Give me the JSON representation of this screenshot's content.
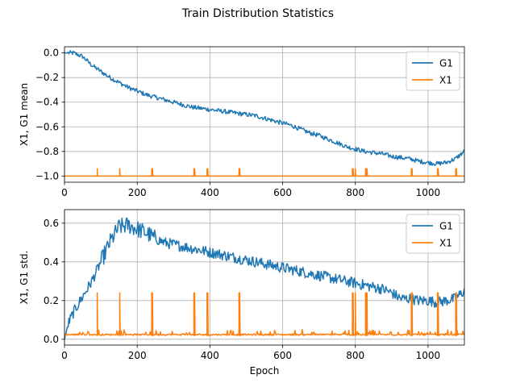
{
  "figure": {
    "title": "Train Distribution Statistics"
  },
  "chart_data": [
    {
      "type": "line",
      "title": "",
      "xlabel": "",
      "ylabel": "X1, G1 mean",
      "xlim": [
        0,
        1100
      ],
      "ylim": [
        -1.05,
        0.05
      ],
      "xticks": [
        0,
        200,
        400,
        600,
        800,
        1000
      ],
      "yticks": [
        0.0,
        -0.2,
        -0.4,
        -0.6,
        -0.8,
        -1.0
      ],
      "ytick_labels": [
        "0.0",
        "−0.2",
        "−0.4",
        "−0.6",
        "−0.8",
        "−1.0"
      ],
      "grid": true,
      "legend": "top-right",
      "series": [
        {
          "name": "G1",
          "color": "#1f77b4",
          "x": [
            0,
            25,
            50,
            75,
            100,
            125,
            150,
            175,
            200,
            225,
            250,
            275,
            300,
            325,
            350,
            375,
            400,
            425,
            450,
            475,
            500,
            525,
            550,
            575,
            600,
            625,
            650,
            675,
            700,
            725,
            750,
            775,
            800,
            825,
            850,
            875,
            900,
            925,
            950,
            975,
            1000,
            1025,
            1050,
            1075,
            1100
          ],
          "values": [
            0.0,
            0.0,
            -0.03,
            -0.1,
            -0.15,
            -0.2,
            -0.24,
            -0.28,
            -0.31,
            -0.34,
            -0.36,
            -0.38,
            -0.4,
            -0.42,
            -0.44,
            -0.45,
            -0.46,
            -0.47,
            -0.48,
            -0.49,
            -0.5,
            -0.51,
            -0.53,
            -0.55,
            -0.57,
            -0.59,
            -0.62,
            -0.65,
            -0.67,
            -0.7,
            -0.73,
            -0.76,
            -0.78,
            -0.8,
            -0.81,
            -0.82,
            -0.84,
            -0.85,
            -0.86,
            -0.88,
            -0.89,
            -0.9,
            -0.89,
            -0.86,
            -0.8
          ]
        },
        {
          "name": "X1",
          "color": "#ff7f0e",
          "baseline": -1.0,
          "spike_x": [
            90,
            152,
            241,
            357,
            393,
            481,
            793,
            800,
            829,
            832,
            955,
            1027,
            1077
          ],
          "spike_y": [
            -0.94,
            -0.94,
            -0.94,
            -0.94,
            -0.94,
            -0.94,
            -0.94,
            -0.94,
            -0.94,
            -0.94,
            -0.94,
            -0.94,
            -0.94
          ]
        }
      ]
    },
    {
      "type": "line",
      "title": "",
      "xlabel": "Epoch",
      "ylabel": "X1, G1 std.",
      "xlim": [
        0,
        1100
      ],
      "ylim": [
        -0.03,
        0.67
      ],
      "xticks": [
        0,
        200,
        400,
        600,
        800,
        1000
      ],
      "yticks": [
        0.0,
        0.2,
        0.4,
        0.6
      ],
      "ytick_labels": [
        "0.0",
        "0.2",
        "0.4",
        "0.6"
      ],
      "grid": true,
      "legend": "top-right",
      "series": [
        {
          "name": "G1",
          "color": "#1f77b4",
          "x": [
            0,
            10,
            25,
            50,
            75,
            100,
            125,
            150,
            175,
            200,
            225,
            250,
            275,
            300,
            325,
            350,
            375,
            400,
            425,
            450,
            475,
            500,
            525,
            550,
            575,
            600,
            625,
            650,
            675,
            700,
            725,
            750,
            775,
            800,
            825,
            850,
            875,
            900,
            925,
            950,
            975,
            1000,
            1025,
            1050,
            1075,
            1100
          ],
          "values": [
            0.0,
            0.08,
            0.14,
            0.22,
            0.3,
            0.4,
            0.5,
            0.58,
            0.59,
            0.57,
            0.55,
            0.52,
            0.5,
            0.49,
            0.48,
            0.47,
            0.46,
            0.45,
            0.44,
            0.43,
            0.42,
            0.41,
            0.4,
            0.39,
            0.38,
            0.37,
            0.36,
            0.35,
            0.34,
            0.33,
            0.32,
            0.31,
            0.3,
            0.29,
            0.28,
            0.27,
            0.26,
            0.24,
            0.21,
            0.21,
            0.2,
            0.2,
            0.19,
            0.2,
            0.21,
            0.25
          ]
        },
        {
          "name": "X1",
          "color": "#ff7f0e",
          "baseline": 0.02,
          "spike_x": [
            90,
            152,
            241,
            357,
            393,
            481,
            793,
            800,
            829,
            832,
            955,
            1027,
            1077
          ],
          "spike_y": [
            0.24,
            0.24,
            0.24,
            0.24,
            0.24,
            0.24,
            0.24,
            0.24,
            0.24,
            0.24,
            0.24,
            0.24,
            0.24
          ]
        }
      ]
    }
  ]
}
